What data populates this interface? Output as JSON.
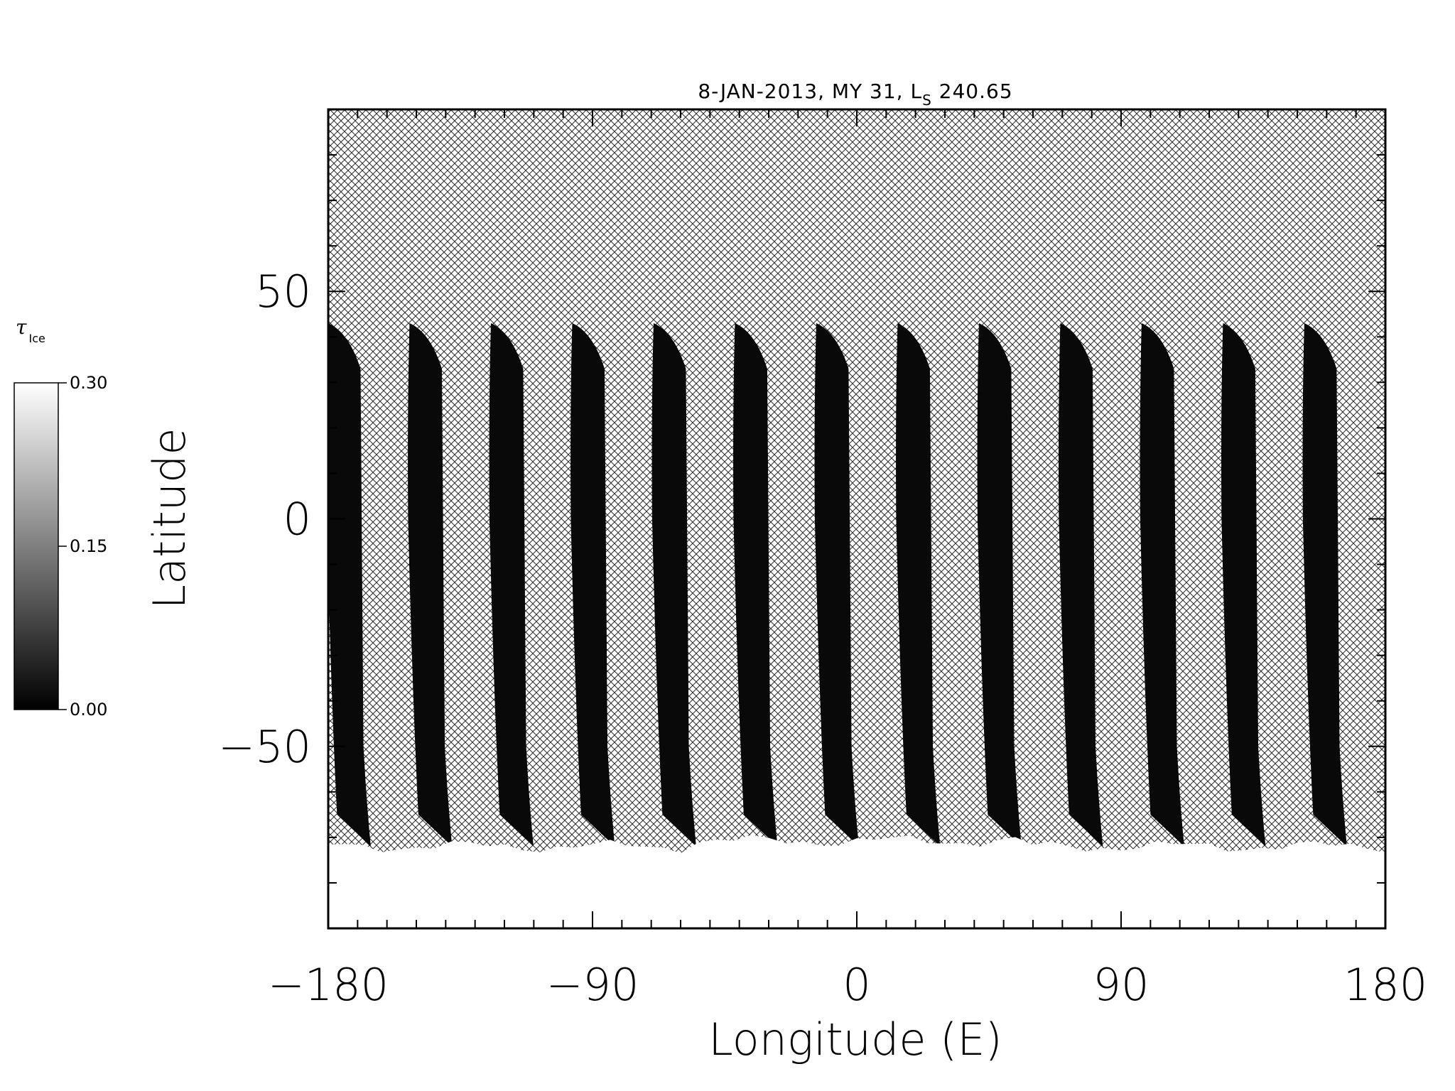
{
  "chart_data": {
    "type": "heatmap",
    "title": {
      "main": "8-JAN-2013, MY 31,  L",
      "subscript": "S",
      "suffix": " 240.65"
    },
    "xlabel": "Longitude (E)",
    "ylabel": "Latitude",
    "xlim": [
      -180,
      180
    ],
    "ylim": [
      -90,
      90
    ],
    "xticks": [
      -180,
      -90,
      0,
      90,
      180
    ],
    "xtick_labels": [
      "−180",
      "−90",
      "0",
      "90",
      "180"
    ],
    "yticks": [
      -50,
      0,
      50
    ],
    "ytick_labels": [
      "−50",
      "0",
      "50"
    ],
    "x_minor_step": 10,
    "y_minor_step": 10,
    "colorbar": {
      "title_symbol": "τ",
      "title_sub": "Ice",
      "min": 0.0,
      "max": 0.3,
      "tick_values": [
        0.0,
        0.15,
        0.3
      ],
      "tick_labels": [
        "0.00",
        "0.15",
        "0.30"
      ],
      "colormap": "grayscale"
    },
    "no_data_pattern": "crosshatch",
    "swaths": {
      "count": 13,
      "spacing_deg": 27.7,
      "first_top_lon": -180,
      "top_lat": 43,
      "shoulder_lat": 33,
      "bottom_lat": -72,
      "tau_ice": 0.01
    },
    "south_polar_cap": {
      "lat_range": [
        -90,
        -72
      ],
      "tau_ice": 0.3
    }
  }
}
